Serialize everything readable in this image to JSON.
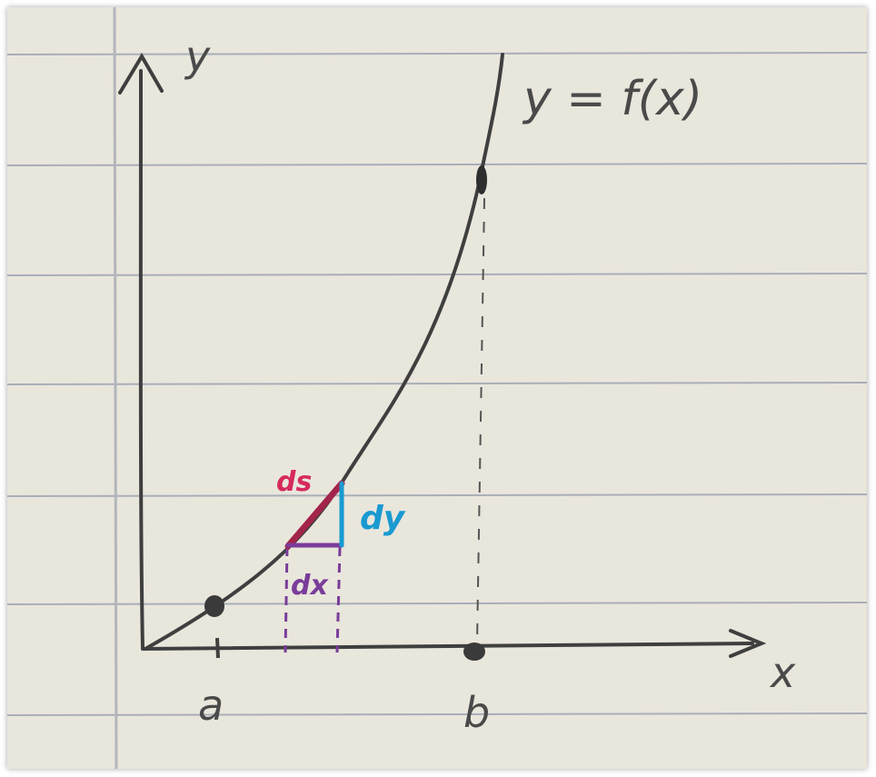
{
  "labels": {
    "y_axis": "y",
    "x_axis": "x",
    "function": "y = f(x)",
    "point_a": "a",
    "point_b": "b",
    "ds": "ds",
    "dx": "dx",
    "dy": "dy"
  },
  "colors": {
    "paper": "#e9e6dc",
    "rule_line": "#a9aeb8",
    "margin_line": "#b4b6bc",
    "pencil": "#3f3f3f",
    "ds": "#d62a5c",
    "ds_line": "#a3244a",
    "dx": "#7a3c9a",
    "dy": "#1a9ad0"
  }
}
